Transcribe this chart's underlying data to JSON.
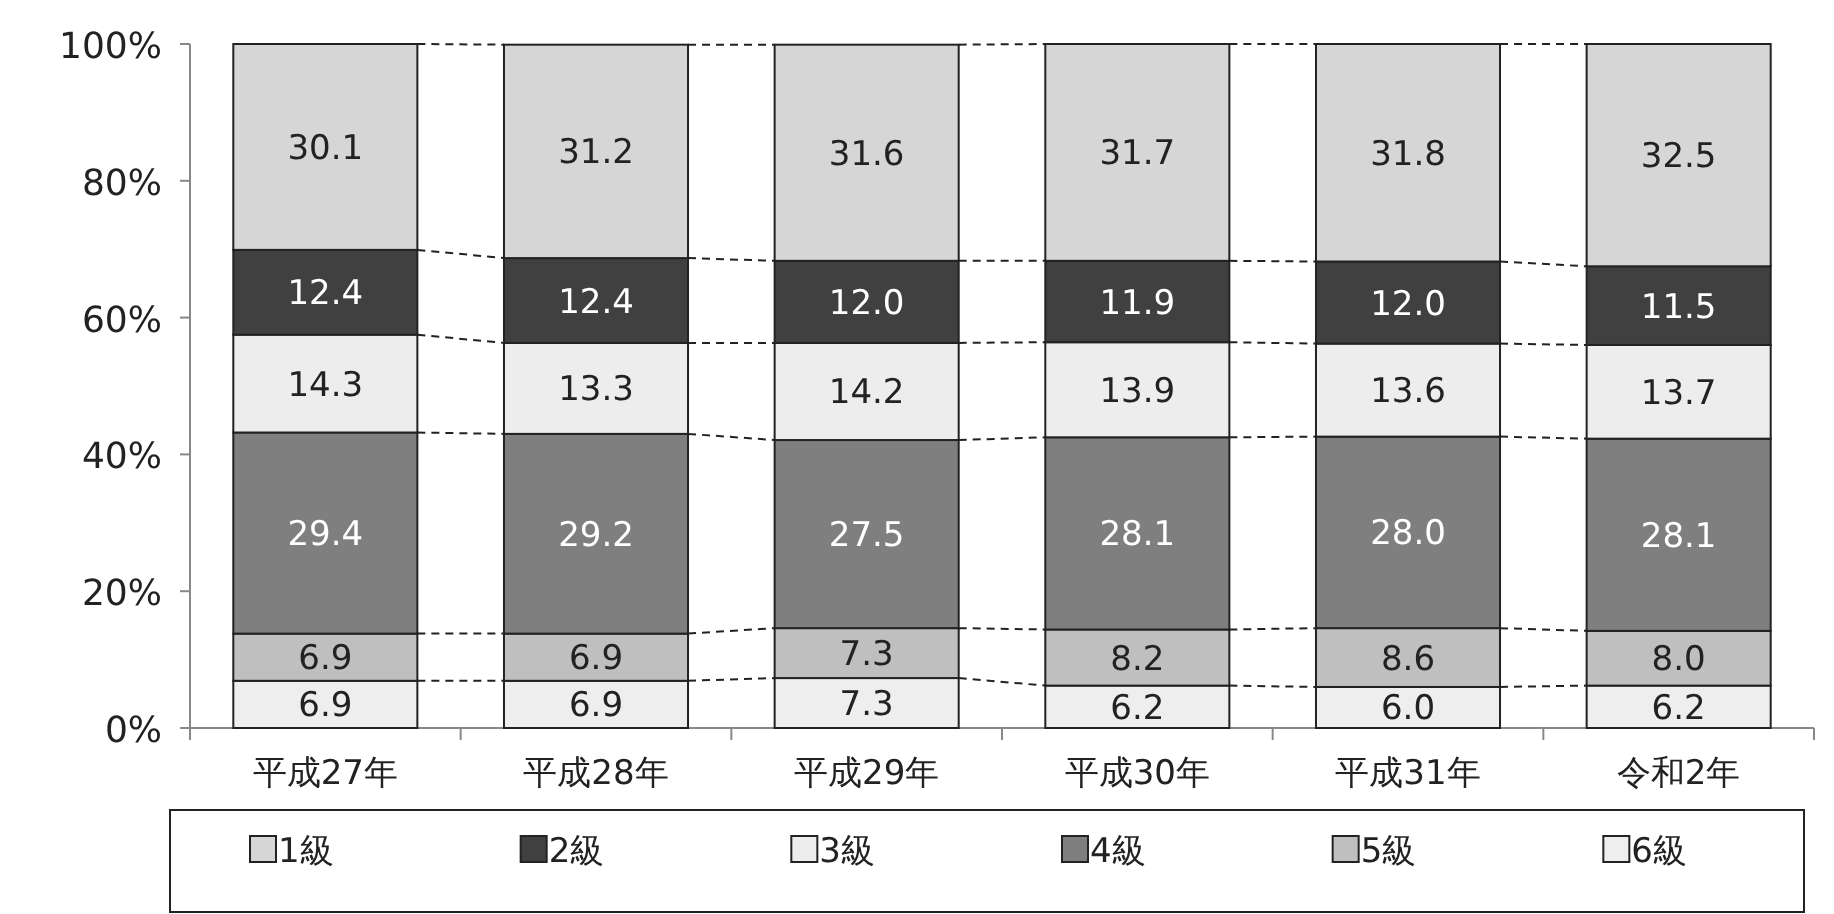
{
  "chart_data": {
    "type": "bar",
    "stacked": true,
    "legend": "bottom",
    "grid": false,
    "categories": [
      "平成27年",
      "平成28年",
      "平成29年",
      "平成30年",
      "平成31年",
      "令和2年"
    ],
    "ylim": [
      0,
      100
    ],
    "yticks": [
      {
        "value": 0,
        "label": "0%"
      },
      {
        "value": 20,
        "label": "20%"
      },
      {
        "value": 40,
        "label": "40%"
      },
      {
        "value": 60,
        "label": "60%"
      },
      {
        "value": 80,
        "label": "80%"
      },
      {
        "value": 100,
        "label": "100%"
      }
    ],
    "series": [
      {
        "name": "6級",
        "color": "#eeeeee",
        "values": [
          6.9,
          6.9,
          7.3,
          6.2,
          6.0,
          6.2
        ],
        "value_labels": [
          "6.9",
          "6.9",
          "7.3",
          "6.2",
          "6.0",
          "6.2"
        ]
      },
      {
        "name": "5級",
        "color": "#bfbfbf",
        "values": [
          6.9,
          6.9,
          7.3,
          8.2,
          8.6,
          8.0
        ],
        "value_labels": [
          "6.9",
          "6.9",
          "7.3",
          "8.2",
          "8.6",
          "8.0"
        ]
      },
      {
        "name": "4級",
        "color": "#7f7f7f",
        "values": [
          29.4,
          29.2,
          27.5,
          28.1,
          28.0,
          28.1
        ],
        "value_labels": [
          "29.4",
          "29.2",
          "27.5",
          "28.1",
          "28.0",
          "28.1"
        ]
      },
      {
        "name": "3級",
        "color": "#ededed",
        "values": [
          14.3,
          13.3,
          14.2,
          13.9,
          13.6,
          13.7
        ],
        "value_labels": [
          "14.3",
          "13.3",
          "14.2",
          "13.9",
          "13.6",
          "13.7"
        ]
      },
      {
        "name": "2級",
        "color": "#404040",
        "values": [
          12.4,
          12.4,
          12.0,
          11.9,
          12.0,
          11.5
        ],
        "value_labels": [
          "12.4",
          "12.4",
          "12.0",
          "11.9",
          "12.0",
          "11.5"
        ]
      },
      {
        "name": "1級",
        "color": "#d6d6d6",
        "values": [
          30.1,
          31.2,
          31.6,
          31.7,
          31.8,
          32.5
        ],
        "value_labels": [
          "30.1",
          "31.2",
          "31.6",
          "31.7",
          "31.8",
          "32.5"
        ]
      }
    ]
  }
}
